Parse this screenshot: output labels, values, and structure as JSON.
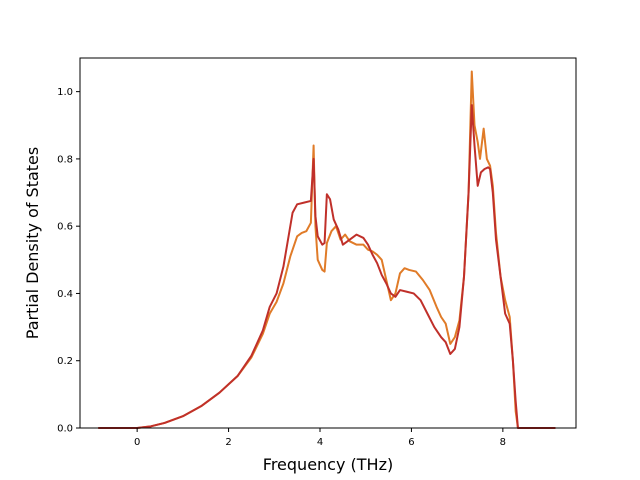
{
  "chart_data": {
    "type": "line",
    "title": "",
    "xlabel": "Frequency (THz)",
    "ylabel": "Partial Density of States",
    "xlim": [
      -1.25,
      9.6
    ],
    "ylim": [
      0.0,
      1.1
    ],
    "xticks": [
      0,
      2,
      4,
      6,
      8
    ],
    "yticks": [
      0.0,
      0.2,
      0.4,
      0.6,
      0.8,
      1.0
    ],
    "xtick_labels": [
      "0",
      "2",
      "4",
      "6",
      "8"
    ],
    "ytick_labels": [
      "0.0",
      "0.2",
      "0.4",
      "0.6",
      "0.8",
      "1.0"
    ],
    "grid": false,
    "legend": false,
    "series": [
      {
        "color": "#e07b28",
        "points": [
          [
            -0.85,
            0.0
          ],
          [
            0.0,
            0.0
          ],
          [
            0.3,
            0.005
          ],
          [
            0.6,
            0.015
          ],
          [
            1.0,
            0.035
          ],
          [
            1.4,
            0.065
          ],
          [
            1.8,
            0.105
          ],
          [
            2.2,
            0.155
          ],
          [
            2.5,
            0.21
          ],
          [
            2.75,
            0.28
          ],
          [
            2.9,
            0.34
          ],
          [
            3.05,
            0.375
          ],
          [
            3.2,
            0.43
          ],
          [
            3.35,
            0.51
          ],
          [
            3.5,
            0.57
          ],
          [
            3.6,
            0.58
          ],
          [
            3.7,
            0.585
          ],
          [
            3.8,
            0.61
          ],
          [
            3.86,
            0.84
          ],
          [
            3.9,
            0.6
          ],
          [
            3.95,
            0.5
          ],
          [
            4.05,
            0.47
          ],
          [
            4.1,
            0.465
          ],
          [
            4.15,
            0.55
          ],
          [
            4.25,
            0.585
          ],
          [
            4.35,
            0.6
          ],
          [
            4.45,
            0.56
          ],
          [
            4.55,
            0.575
          ],
          [
            4.65,
            0.555
          ],
          [
            4.8,
            0.545
          ],
          [
            4.95,
            0.545
          ],
          [
            5.05,
            0.53
          ],
          [
            5.15,
            0.525
          ],
          [
            5.25,
            0.515
          ],
          [
            5.35,
            0.5
          ],
          [
            5.45,
            0.44
          ],
          [
            5.55,
            0.38
          ],
          [
            5.65,
            0.4
          ],
          [
            5.75,
            0.46
          ],
          [
            5.85,
            0.475
          ],
          [
            5.95,
            0.47
          ],
          [
            6.1,
            0.465
          ],
          [
            6.25,
            0.44
          ],
          [
            6.4,
            0.41
          ],
          [
            6.55,
            0.36
          ],
          [
            6.65,
            0.33
          ],
          [
            6.75,
            0.31
          ],
          [
            6.85,
            0.25
          ],
          [
            6.95,
            0.27
          ],
          [
            7.05,
            0.32
          ],
          [
            7.15,
            0.45
          ],
          [
            7.25,
            0.7
          ],
          [
            7.32,
            1.06
          ],
          [
            7.38,
            0.9
          ],
          [
            7.45,
            0.85
          ],
          [
            7.5,
            0.8
          ],
          [
            7.58,
            0.89
          ],
          [
            7.65,
            0.8
          ],
          [
            7.72,
            0.78
          ],
          [
            7.78,
            0.72
          ],
          [
            7.85,
            0.58
          ],
          [
            7.95,
            0.45
          ],
          [
            8.05,
            0.38
          ],
          [
            8.15,
            0.33
          ],
          [
            8.22,
            0.2
          ],
          [
            8.28,
            0.05
          ],
          [
            8.33,
            0.0
          ],
          [
            9.15,
            0.0
          ]
        ]
      },
      {
        "color": "#c0302a",
        "points": [
          [
            -0.85,
            0.0
          ],
          [
            0.0,
            0.0
          ],
          [
            0.3,
            0.005
          ],
          [
            0.6,
            0.015
          ],
          [
            1.0,
            0.035
          ],
          [
            1.4,
            0.065
          ],
          [
            1.8,
            0.105
          ],
          [
            2.2,
            0.155
          ],
          [
            2.5,
            0.215
          ],
          [
            2.75,
            0.29
          ],
          [
            2.9,
            0.36
          ],
          [
            3.05,
            0.4
          ],
          [
            3.2,
            0.48
          ],
          [
            3.3,
            0.56
          ],
          [
            3.4,
            0.64
          ],
          [
            3.5,
            0.665
          ],
          [
            3.65,
            0.67
          ],
          [
            3.8,
            0.675
          ],
          [
            3.86,
            0.8
          ],
          [
            3.9,
            0.63
          ],
          [
            3.95,
            0.57
          ],
          [
            4.05,
            0.545
          ],
          [
            4.1,
            0.55
          ],
          [
            4.15,
            0.695
          ],
          [
            4.22,
            0.68
          ],
          [
            4.3,
            0.62
          ],
          [
            4.4,
            0.59
          ],
          [
            4.5,
            0.545
          ],
          [
            4.6,
            0.555
          ],
          [
            4.7,
            0.565
          ],
          [
            4.8,
            0.575
          ],
          [
            4.95,
            0.565
          ],
          [
            5.05,
            0.545
          ],
          [
            5.15,
            0.515
          ],
          [
            5.25,
            0.49
          ],
          [
            5.35,
            0.455
          ],
          [
            5.45,
            0.43
          ],
          [
            5.55,
            0.4
          ],
          [
            5.65,
            0.39
          ],
          [
            5.75,
            0.41
          ],
          [
            5.9,
            0.405
          ],
          [
            6.05,
            0.4
          ],
          [
            6.2,
            0.38
          ],
          [
            6.35,
            0.34
          ],
          [
            6.5,
            0.3
          ],
          [
            6.65,
            0.27
          ],
          [
            6.75,
            0.255
          ],
          [
            6.85,
            0.22
          ],
          [
            6.95,
            0.235
          ],
          [
            7.05,
            0.3
          ],
          [
            7.15,
            0.45
          ],
          [
            7.25,
            0.7
          ],
          [
            7.32,
            0.96
          ],
          [
            7.38,
            0.84
          ],
          [
            7.45,
            0.72
          ],
          [
            7.52,
            0.76
          ],
          [
            7.6,
            0.77
          ],
          [
            7.68,
            0.775
          ],
          [
            7.72,
            0.77
          ],
          [
            7.78,
            0.7
          ],
          [
            7.85,
            0.56
          ],
          [
            7.95,
            0.45
          ],
          [
            8.05,
            0.34
          ],
          [
            8.15,
            0.31
          ],
          [
            8.22,
            0.2
          ],
          [
            8.28,
            0.08
          ],
          [
            8.33,
            0.0
          ],
          [
            9.15,
            0.0
          ]
        ]
      }
    ]
  }
}
